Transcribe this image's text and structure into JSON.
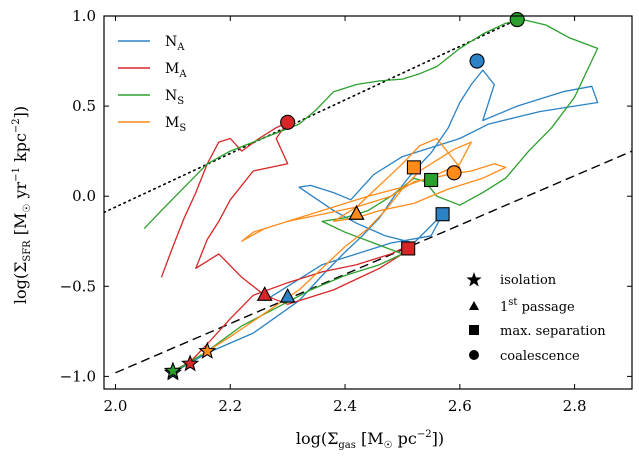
{
  "chart_data": {
    "type": "line",
    "xlabel_main": "log(Σ",
    "xlabel_sub": "gas",
    "xlabel_rest": " [M",
    "xlabel_odot": "☉",
    "xlabel_unit": " pc",
    "xlabel_exp": "−2",
    "xlabel_close": "])",
    "ylabel_main": "log(Σ",
    "ylabel_sub": "SFR",
    "ylabel_rest": " [M",
    "ylabel_odot": "☉",
    "ylabel_unit1": " yr",
    "ylabel_exp1": "−1",
    "ylabel_unit2": " kpc",
    "ylabel_exp2": "−2",
    "ylabel_close": "])",
    "xlim": [
      1.98,
      2.9
    ],
    "ylim": [
      -1.07,
      1.0
    ],
    "xticks": [
      2.0,
      2.2,
      2.4,
      2.6,
      2.8
    ],
    "xtick_labels": [
      "2.0",
      "2.2",
      "2.4",
      "2.6",
      "2.8"
    ],
    "yticks": [
      -1.0,
      -0.5,
      0.0,
      0.5,
      1.0
    ],
    "ytick_labels": [
      "−1.0",
      "−0.5",
      "0.0",
      "0.5",
      "1.0"
    ],
    "series": [
      {
        "name_main": "N",
        "name_sub": "A",
        "color": "#2b83c6",
        "points": [
          [
            2.1,
            -0.98
          ],
          [
            2.16,
            -0.87
          ],
          [
            2.24,
            -0.76
          ],
          [
            2.32,
            -0.58
          ],
          [
            2.36,
            -0.44
          ],
          [
            2.4,
            -0.31
          ],
          [
            2.43,
            -0.22
          ],
          [
            2.46,
            -0.12
          ],
          [
            2.49,
            0.02
          ],
          [
            2.52,
            0.14
          ],
          [
            2.55,
            0.24
          ],
          [
            2.58,
            0.38
          ],
          [
            2.6,
            0.52
          ],
          [
            2.62,
            0.62
          ],
          [
            2.64,
            0.7
          ],
          [
            2.66,
            0.62
          ],
          [
            2.64,
            0.42
          ],
          [
            2.7,
            0.5
          ],
          [
            2.78,
            0.58
          ],
          [
            2.83,
            0.61
          ],
          [
            2.84,
            0.52
          ],
          [
            2.74,
            0.47
          ],
          [
            2.65,
            0.4
          ],
          [
            2.6,
            0.32
          ],
          [
            2.56,
            0.28
          ],
          [
            2.5,
            0.22
          ],
          [
            2.45,
            0.12
          ],
          [
            2.41,
            -0.02
          ],
          [
            2.38,
            0.02
          ],
          [
            2.34,
            0.06
          ],
          [
            2.32,
            0.05
          ],
          [
            2.38,
            -0.08
          ],
          [
            2.42,
            -0.15
          ],
          [
            2.47,
            -0.22
          ],
          [
            2.52,
            -0.26
          ],
          [
            2.57,
            -0.1
          ],
          [
            2.55,
            -0.22
          ],
          [
            2.48,
            -0.26
          ],
          [
            2.44,
            -0.3
          ],
          [
            2.36,
            -0.38
          ],
          [
            2.3,
            -0.5
          ],
          [
            2.26,
            -0.58
          ]
        ],
        "markers": {
          "isolation": [
            2.1,
            -0.98
          ],
          "passage": [
            2.3,
            -0.56
          ],
          "separation": [
            2.57,
            -0.1
          ],
          "coalescence": [
            2.63,
            0.75
          ]
        }
      },
      {
        "name_main": "M",
        "name_sub": "A",
        "color": "#d62728",
        "points": [
          [
            2.08,
            -0.45
          ],
          [
            2.1,
            -0.28
          ],
          [
            2.12,
            -0.12
          ],
          [
            2.14,
            0.02
          ],
          [
            2.16,
            0.18
          ],
          [
            2.18,
            0.3
          ],
          [
            2.2,
            0.32
          ],
          [
            2.22,
            0.25
          ],
          [
            2.25,
            0.32
          ],
          [
            2.28,
            0.38
          ],
          [
            2.3,
            0.41
          ],
          [
            2.28,
            0.32
          ],
          [
            2.3,
            0.18
          ],
          [
            2.24,
            0.14
          ],
          [
            2.2,
            -0.02
          ],
          [
            2.18,
            -0.14
          ],
          [
            2.16,
            -0.24
          ],
          [
            2.14,
            -0.4
          ],
          [
            2.18,
            -0.32
          ],
          [
            2.22,
            -0.45
          ],
          [
            2.26,
            -0.55
          ],
          [
            2.3,
            -0.6
          ],
          [
            2.34,
            -0.56
          ],
          [
            2.38,
            -0.52
          ],
          [
            2.42,
            -0.46
          ],
          [
            2.46,
            -0.4
          ],
          [
            2.5,
            -0.32
          ],
          [
            2.52,
            -0.26
          ],
          [
            2.48,
            -0.32
          ],
          [
            2.42,
            -0.38
          ],
          [
            2.36,
            -0.42
          ],
          [
            2.3,
            -0.48
          ],
          [
            2.24,
            -0.55
          ],
          [
            2.2,
            -0.68
          ],
          [
            2.16,
            -0.82
          ],
          [
            2.13,
            -0.92
          ],
          [
            2.1,
            -0.97
          ]
        ],
        "markers": {
          "isolation": [
            2.13,
            -0.93
          ],
          "passage": [
            2.26,
            -0.55
          ],
          "separation": [
            2.51,
            -0.29
          ],
          "coalescence": [
            2.3,
            0.41
          ]
        }
      },
      {
        "name_main": "N",
        "name_sub": "S",
        "color": "#2ca02c",
        "points": [
          [
            2.05,
            -0.18
          ],
          [
            2.08,
            -0.08
          ],
          [
            2.12,
            0.05
          ],
          [
            2.16,
            0.18
          ],
          [
            2.2,
            0.25
          ],
          [
            2.24,
            0.3
          ],
          [
            2.28,
            0.35
          ],
          [
            2.32,
            0.4
          ],
          [
            2.35,
            0.48
          ],
          [
            2.38,
            0.58
          ],
          [
            2.42,
            0.62
          ],
          [
            2.46,
            0.64
          ],
          [
            2.5,
            0.65
          ],
          [
            2.53,
            0.68
          ],
          [
            2.56,
            0.72
          ],
          [
            2.6,
            0.82
          ],
          [
            2.64,
            0.9
          ],
          [
            2.68,
            0.96
          ],
          [
            2.71,
            0.98
          ],
          [
            2.75,
            0.95
          ],
          [
            2.79,
            0.88
          ],
          [
            2.84,
            0.82
          ],
          [
            2.8,
            0.55
          ],
          [
            2.76,
            0.38
          ],
          [
            2.72,
            0.25
          ],
          [
            2.68,
            0.1
          ],
          [
            2.64,
            0.02
          ],
          [
            2.6,
            -0.05
          ],
          [
            2.56,
            0.0
          ],
          [
            2.54,
            0.08
          ],
          [
            2.52,
            0.1
          ],
          [
            2.48,
            0.0
          ],
          [
            2.44,
            -0.08
          ],
          [
            2.4,
            -0.12
          ],
          [
            2.36,
            -0.14
          ],
          [
            2.4,
            -0.2
          ],
          [
            2.45,
            -0.26
          ],
          [
            2.5,
            -0.32
          ],
          [
            2.46,
            -0.38
          ],
          [
            2.4,
            -0.44
          ],
          [
            2.34,
            -0.52
          ],
          [
            2.28,
            -0.62
          ],
          [
            2.22,
            -0.72
          ],
          [
            2.16,
            -0.86
          ],
          [
            2.12,
            -0.94
          ],
          [
            2.1,
            -0.97
          ]
        ],
        "markers": {
          "isolation": [
            2.1,
            -0.97
          ],
          "passage": [
            2.42,
            -0.1
          ],
          "separation": [
            2.55,
            0.09
          ],
          "coalescence": [
            2.7,
            0.98
          ]
        }
      },
      {
        "name_main": "M",
        "name_sub": "S",
        "color": "#ff8c1a",
        "points": [
          [
            2.15,
            -0.88
          ],
          [
            2.2,
            -0.78
          ],
          [
            2.26,
            -0.65
          ],
          [
            2.32,
            -0.52
          ],
          [
            2.36,
            -0.4
          ],
          [
            2.4,
            -0.28
          ],
          [
            2.44,
            -0.18
          ],
          [
            2.47,
            -0.08
          ],
          [
            2.5,
            0.04
          ],
          [
            2.53,
            0.14
          ],
          [
            2.56,
            0.2
          ],
          [
            2.59,
            0.26
          ],
          [
            2.62,
            0.3
          ],
          [
            2.6,
            0.18
          ],
          [
            2.56,
            0.12
          ],
          [
            2.5,
            0.05
          ],
          [
            2.44,
            0.0
          ],
          [
            2.38,
            -0.06
          ],
          [
            2.32,
            -0.12
          ],
          [
            2.26,
            -0.18
          ],
          [
            2.22,
            -0.25
          ],
          [
            2.24,
            -0.2
          ],
          [
            2.3,
            -0.14
          ],
          [
            2.36,
            -0.1
          ],
          [
            2.42,
            -0.06
          ],
          [
            2.48,
            0.0
          ],
          [
            2.52,
            0.08
          ],
          [
            2.55,
            0.1
          ],
          [
            2.58,
            0.12
          ],
          [
            2.62,
            0.14
          ],
          [
            2.66,
            0.18
          ],
          [
            2.68,
            0.16
          ],
          [
            2.64,
            0.1
          ],
          [
            2.58,
            0.04
          ],
          [
            2.52,
            -0.04
          ],
          [
            2.46,
            -0.08
          ],
          [
            2.42,
            -0.12
          ],
          [
            2.38,
            -0.14
          ],
          [
            2.42,
            -0.06
          ],
          [
            2.46,
            0.06
          ],
          [
            2.5,
            0.18
          ],
          [
            2.53,
            0.28
          ],
          [
            2.56,
            0.32
          ],
          [
            2.58,
            0.24
          ],
          [
            2.6,
            0.16
          ],
          [
            2.58,
            0.12
          ]
        ],
        "markers": {
          "isolation": [
            2.16,
            -0.86
          ],
          "passage": [
            2.42,
            -0.1
          ],
          "separation": [
            2.52,
            0.16
          ],
          "coalescence": [
            2.59,
            0.13
          ]
        }
      }
    ],
    "dotted_line": [
      [
        1.98,
        -0.09
      ],
      [
        2.7,
        0.98
      ]
    ],
    "dashed_line": [
      [
        2.0,
        -0.98
      ],
      [
        2.9,
        0.25
      ]
    ],
    "marker_legend": [
      {
        "type": "isolation",
        "text": "isolation"
      },
      {
        "type": "passage",
        "text": "1",
        "sup": "st",
        "text_after": " passage"
      },
      {
        "type": "separation",
        "text": "max. separation"
      },
      {
        "type": "coalescence",
        "text": "coalescence"
      }
    ]
  }
}
